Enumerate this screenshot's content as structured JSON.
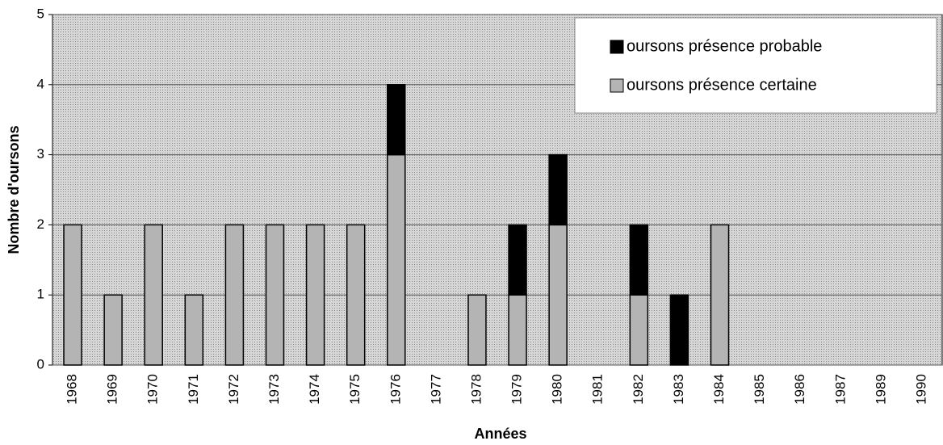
{
  "chart_data": {
    "type": "stacked_bar",
    "x_label": "Années",
    "y_label": "Nombre d'oursons",
    "categories": [
      "1968",
      "1969",
      "1970",
      "1971",
      "1972",
      "1973",
      "1974",
      "1975",
      "1976",
      "1977",
      "1978",
      "1979",
      "1980",
      "1981",
      "1982",
      "1983",
      "1984",
      "1985",
      "1986",
      "1987",
      "1989",
      "1990"
    ],
    "series": [
      {
        "name": "oursons présence certaine",
        "color": "#b4b4b4",
        "values": [
          2,
          1,
          2,
          1,
          2,
          2,
          2,
          2,
          3,
          0,
          1,
          1,
          2,
          0,
          1,
          0,
          2,
          0,
          0,
          0,
          0,
          0
        ]
      },
      {
        "name": "oursons présence probable",
        "color": "#000000",
        "values": [
          0,
          0,
          0,
          0,
          0,
          0,
          0,
          0,
          1,
          0,
          0,
          1,
          1,
          0,
          1,
          1,
          0,
          0,
          0,
          0,
          0,
          0
        ]
      }
    ],
    "ylim": [
      0,
      5
    ],
    "yticks": [
      0,
      1,
      2,
      3,
      4,
      5
    ],
    "grid": true,
    "legend": "upper right"
  }
}
